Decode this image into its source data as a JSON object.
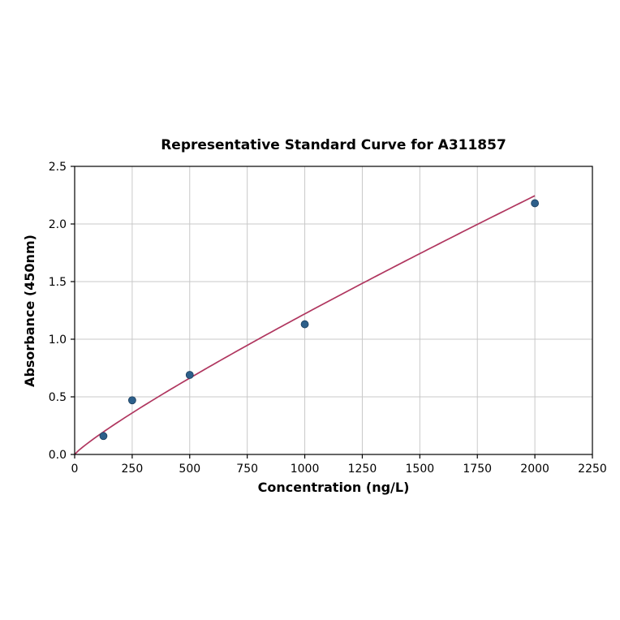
{
  "page": {
    "background": "#ffffff"
  },
  "chart_data": {
    "type": "scatter",
    "title": "Representative Standard Curve for A311857",
    "xlabel": "Concentration (ng/L)",
    "ylabel": "Absorbance (450nm)",
    "xlim": [
      0,
      2250
    ],
    "ylim": [
      0,
      2.5
    ],
    "x_ticks": [
      0,
      250,
      500,
      750,
      1000,
      1250,
      1500,
      1750,
      2000,
      2250
    ],
    "y_ticks": [
      0.0,
      0.5,
      1.0,
      1.5,
      2.0,
      2.5
    ],
    "grid": true,
    "legend": "none",
    "series": [
      {
        "name": "standards",
        "x": [
          125,
          250,
          500,
          1000,
          2000
        ],
        "y": [
          0.16,
          0.47,
          0.69,
          1.13,
          2.18
        ]
      }
    ],
    "fit_curve": {
      "type": "power",
      "x_start": 0,
      "x_end": 2000
    },
    "colors": {
      "point": "#2d5f8a",
      "point_edge": "#1d3f5e",
      "curve": "#b0365f",
      "grid": "#c8c8c8",
      "spine": "#000000"
    }
  }
}
